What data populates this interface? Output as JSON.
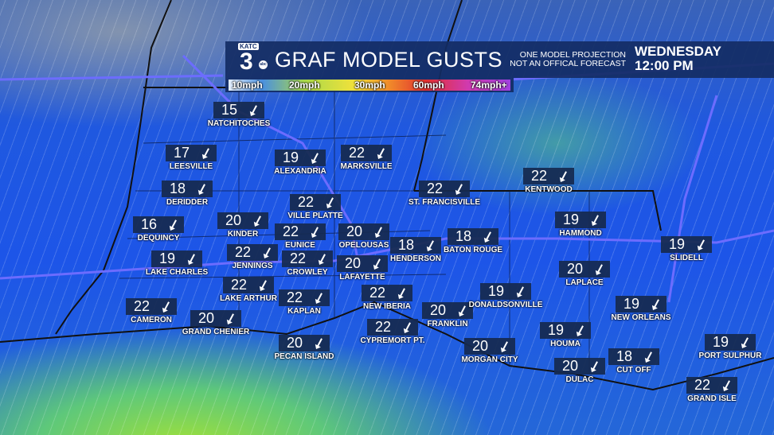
{
  "header": {
    "logo": "KATC 3 abc",
    "title": "GRAF MODEL GUSTS",
    "disclaimer_1": "ONE MODEL PROJECTION",
    "disclaimer_2": "NOT AN OFFICAL FORECAST",
    "day": "WEDNESDAY",
    "time": "12:00 PM"
  },
  "legend": {
    "labels": [
      "10mph",
      "20mph",
      "30mph",
      "60mph",
      "74mph+"
    ],
    "colors": [
      "#4a90e0",
      "#a8d84a",
      "#f3e23a",
      "#e23030",
      "#a040e0"
    ]
  },
  "units": "mph",
  "stations": [
    {
      "name": "NATCHITOCHES",
      "gust": "15"
    },
    {
      "name": "LEESVILLE",
      "gust": "17"
    },
    {
      "name": "DERIDDER",
      "gust": "18"
    },
    {
      "name": "DEQUINCY",
      "gust": "16"
    },
    {
      "name": "LAKE CHARLES",
      "gust": "19"
    },
    {
      "name": "KINDER",
      "gust": "20"
    },
    {
      "name": "JENNINGS",
      "gust": "22"
    },
    {
      "name": "LAKE ARTHUR",
      "gust": "22"
    },
    {
      "name": "CAMERON",
      "gust": "22"
    },
    {
      "name": "GRAND CHENIER",
      "gust": "20"
    },
    {
      "name": "ALEXANDRIA",
      "gust": "19"
    },
    {
      "name": "MARKSVILLE",
      "gust": "22"
    },
    {
      "name": "VILLE PLATTE",
      "gust": "22"
    },
    {
      "name": "EUNICE",
      "gust": "22"
    },
    {
      "name": "CROWLEY",
      "gust": "22"
    },
    {
      "name": "KAPLAN",
      "gust": "22"
    },
    {
      "name": "OPELOUSAS",
      "gust": "20"
    },
    {
      "name": "LAFAYETTE",
      "gust": "20"
    },
    {
      "name": "HENDERSON",
      "gust": "18"
    },
    {
      "name": "NEW IBERIA",
      "gust": "22"
    },
    {
      "name": "PECAN ISLAND",
      "gust": "20"
    },
    {
      "name": "CYPREMORT PT.",
      "gust": "22"
    },
    {
      "name": "FRANKLIN",
      "gust": "20"
    },
    {
      "name": "ST. FRANCISVILLE",
      "gust": "22"
    },
    {
      "name": "BATON ROUGE",
      "gust": "18"
    },
    {
      "name": "DONALDSONVILLE",
      "gust": "19"
    },
    {
      "name": "MORGAN CITY",
      "gust": "20"
    },
    {
      "name": "KENTWOOD",
      "gust": "22"
    },
    {
      "name": "HAMMOND",
      "gust": "19"
    },
    {
      "name": "LAPLACE",
      "gust": "20"
    },
    {
      "name": "HOUMA",
      "gust": "19"
    },
    {
      "name": "DULAC",
      "gust": "20"
    },
    {
      "name": "CUT OFF",
      "gust": "18"
    },
    {
      "name": "NEW ORLEANS",
      "gust": "19"
    },
    {
      "name": "SLIDELL",
      "gust": "19"
    },
    {
      "name": "PORT SULPHUR",
      "gust": "19"
    },
    {
      "name": "GRAND ISLE",
      "gust": "22"
    }
  ]
}
